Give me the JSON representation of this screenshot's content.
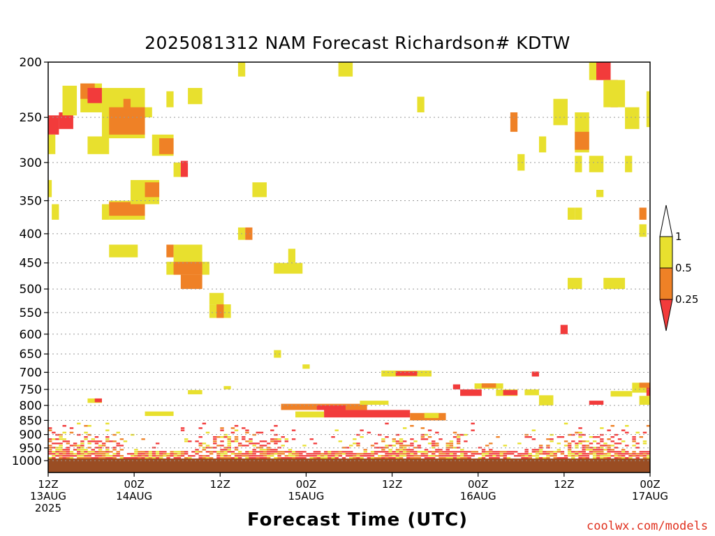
{
  "title": "2025081312 NAM Forecast Richardson# KDTW",
  "x_axis_title": "Forecast Time (UTC)",
  "credit": "coolwx.com/models",
  "chart_data": {
    "type": "heatmap",
    "title": "2025081312 NAM Forecast Richardson# KDTW",
    "xlabel": "Forecast Time (UTC)",
    "ylabel": "",
    "y_scale": "log",
    "y_inverted": true,
    "ylim": [
      200,
      1000
    ],
    "xlim_hours": [
      0,
      84
    ],
    "grid": "dotted horizontal lines at pressure ticks",
    "pressure_levels": [
      200,
      250,
      300,
      350,
      400,
      450,
      500,
      550,
      600,
      650,
      700,
      750,
      800,
      850,
      900,
      950,
      1000
    ],
    "x_ticks": [
      {
        "hour": 0,
        "lines": [
          "12Z",
          "13AUG",
          "2025"
        ]
      },
      {
        "hour": 12,
        "lines": [
          "00Z",
          "14AUG"
        ]
      },
      {
        "hour": 24,
        "lines": [
          "12Z"
        ]
      },
      {
        "hour": 36,
        "lines": [
          "00Z",
          "15AUG"
        ]
      },
      {
        "hour": 48,
        "lines": [
          "12Z"
        ]
      },
      {
        "hour": 60,
        "lines": [
          "00Z",
          "16AUG"
        ]
      },
      {
        "hour": 72,
        "lines": [
          "12Z"
        ]
      },
      {
        "hour": 84,
        "lines": [
          "00Z",
          "17AUG"
        ]
      }
    ],
    "colorbar": {
      "levels": [
        "0.25",
        "0.5",
        "1"
      ],
      "bins": [
        {
          "range": "<0.25",
          "color": "#f23b3b"
        },
        {
          "range": "0.25-0.5",
          "color": "#ef8126"
        },
        {
          "range": "0.5-1",
          "color": "#e8e02e"
        },
        {
          "range": ">1",
          "color": "#ffffff"
        }
      ]
    },
    "ground_color": "#9a4d23",
    "cells": [
      {
        "t0": 0,
        "t1": 1.5,
        "p0": 248,
        "p1": 268,
        "cat": "red"
      },
      {
        "t0": 1.5,
        "t1": 3.5,
        "p0": 245,
        "p1": 262,
        "cat": "red"
      },
      {
        "t0": 0,
        "t1": 1,
        "p0": 268,
        "p1": 290,
        "cat": "yellow"
      },
      {
        "t0": 2,
        "t1": 4,
        "p0": 220,
        "p1": 248,
        "cat": "yellow"
      },
      {
        "t0": 4.5,
        "t1": 7.5,
        "p0": 218,
        "p1": 245,
        "cat": "yellow"
      },
      {
        "t0": 4.5,
        "t1": 6.5,
        "p0": 218,
        "p1": 232,
        "cat": "orange"
      },
      {
        "t0": 5.5,
        "t1": 7.5,
        "p0": 222,
        "p1": 236,
        "cat": "red"
      },
      {
        "t0": 5.5,
        "t1": 8.5,
        "p0": 270,
        "p1": 290,
        "cat": "yellow"
      },
      {
        "t0": 7.5,
        "t1": 13.5,
        "p0": 222,
        "p1": 272,
        "cat": "yellow"
      },
      {
        "t0": 8.5,
        "t1": 13.5,
        "p0": 240,
        "p1": 268,
        "cat": "orange"
      },
      {
        "t0": 10.5,
        "t1": 11.5,
        "p0": 232,
        "p1": 242,
        "cat": "orange"
      },
      {
        "t0": 13.5,
        "t1": 14.5,
        "p0": 240,
        "p1": 250,
        "cat": "yellow"
      },
      {
        "t0": 14.5,
        "t1": 17.5,
        "p0": 268,
        "p1": 292,
        "cat": "yellow"
      },
      {
        "t0": 15.5,
        "t1": 17.5,
        "p0": 272,
        "p1": 290,
        "cat": "orange"
      },
      {
        "t0": 17.5,
        "t1": 18.5,
        "p0": 300,
        "p1": 318,
        "cat": "yellow"
      },
      {
        "t0": 18.5,
        "t1": 19.5,
        "p0": 298,
        "p1": 318,
        "cat": "red"
      },
      {
        "t0": 16.5,
        "t1": 17.5,
        "p0": 225,
        "p1": 240,
        "cat": "yellow"
      },
      {
        "t0": 19.5,
        "t1": 21.5,
        "p0": 222,
        "p1": 237,
        "cat": "yellow"
      },
      {
        "t0": 0,
        "t1": 0.5,
        "p0": 322,
        "p1": 345,
        "cat": "yellow"
      },
      {
        "t0": 0.5,
        "t1": 1.5,
        "p0": 355,
        "p1": 378,
        "cat": "yellow"
      },
      {
        "t0": 7.5,
        "t1": 8.5,
        "p0": 355,
        "p1": 378,
        "cat": "yellow"
      },
      {
        "t0": 8.5,
        "t1": 13.5,
        "p0": 350,
        "p1": 378,
        "cat": "yellow"
      },
      {
        "t0": 8.5,
        "t1": 13.5,
        "p0": 352,
        "p1": 372,
        "cat": "orange"
      },
      {
        "t0": 11.5,
        "t1": 15.5,
        "p0": 322,
        "p1": 355,
        "cat": "yellow"
      },
      {
        "t0": 13.5,
        "t1": 15.5,
        "p0": 325,
        "p1": 345,
        "cat": "orange"
      },
      {
        "t0": 8.5,
        "t1": 12.5,
        "p0": 418,
        "p1": 440,
        "cat": "yellow"
      },
      {
        "t0": 16.5,
        "t1": 17.5,
        "p0": 418,
        "p1": 440,
        "cat": "orange"
      },
      {
        "t0": 17.5,
        "t1": 21.5,
        "p0": 418,
        "p1": 448,
        "cat": "yellow"
      },
      {
        "t0": 16.5,
        "t1": 22.5,
        "p0": 448,
        "p1": 472,
        "cat": "yellow"
      },
      {
        "t0": 17.5,
        "t1": 21.5,
        "p0": 448,
        "p1": 472,
        "cat": "orange"
      },
      {
        "t0": 18.5,
        "t1": 21.5,
        "p0": 472,
        "p1": 500,
        "cat": "orange"
      },
      {
        "t0": 22.5,
        "t1": 24.5,
        "p0": 508,
        "p1": 532,
        "cat": "yellow"
      },
      {
        "t0": 22.5,
        "t1": 25.5,
        "p0": 532,
        "p1": 562,
        "cat": "yellow"
      },
      {
        "t0": 23.5,
        "t1": 24.5,
        "p0": 532,
        "p1": 562,
        "cat": "orange"
      },
      {
        "t0": 26.5,
        "t1": 27.5,
        "p0": 390,
        "p1": 410,
        "cat": "yellow"
      },
      {
        "t0": 27.5,
        "t1": 28.5,
        "p0": 390,
        "p1": 410,
        "cat": "orange"
      },
      {
        "t0": 28.5,
        "t1": 30.5,
        "p0": 325,
        "p1": 345,
        "cat": "yellow"
      },
      {
        "t0": 26.5,
        "t1": 27.5,
        "p0": 200,
        "p1": 212,
        "cat": "yellow"
      },
      {
        "t0": 31.5,
        "t1": 35.5,
        "p0": 450,
        "p1": 470,
        "cat": "yellow"
      },
      {
        "t0": 33.5,
        "t1": 34.5,
        "p0": 425,
        "p1": 450,
        "cat": "yellow"
      },
      {
        "t0": 40.5,
        "t1": 42.5,
        "p0": 200,
        "p1": 212,
        "cat": "yellow"
      },
      {
        "t0": 51.5,
        "t1": 52.5,
        "p0": 230,
        "p1": 245,
        "cat": "yellow"
      },
      {
        "t0": 64.5,
        "t1": 65.5,
        "p0": 245,
        "p1": 265,
        "cat": "orange"
      },
      {
        "t0": 65.5,
        "t1": 66.5,
        "p0": 290,
        "p1": 310,
        "cat": "yellow"
      },
      {
        "t0": 68.5,
        "t1": 69.5,
        "p0": 270,
        "p1": 288,
        "cat": "yellow"
      },
      {
        "t0": 70.5,
        "t1": 72.5,
        "p0": 232,
        "p1": 258,
        "cat": "yellow"
      },
      {
        "t0": 73.5,
        "t1": 75.5,
        "p0": 245,
        "p1": 288,
        "cat": "yellow"
      },
      {
        "t0": 73.5,
        "t1": 75.5,
        "p0": 265,
        "p1": 285,
        "cat": "orange"
      },
      {
        "t0": 75.5,
        "t1": 77.5,
        "p0": 200,
        "p1": 215,
        "cat": "yellow"
      },
      {
        "t0": 76.5,
        "t1": 78.5,
        "p0": 200,
        "p1": 215,
        "cat": "red"
      },
      {
        "t0": 78.5,
        "t1": 79.5,
        "p0": 215,
        "p1": 240,
        "cat": "red"
      },
      {
        "t0": 77.5,
        "t1": 80.5,
        "p0": 215,
        "p1": 240,
        "cat": "yellow"
      },
      {
        "t0": 80.5,
        "t1": 82.5,
        "p0": 240,
        "p1": 262,
        "cat": "yellow"
      },
      {
        "t0": 83.5,
        "t1": 84,
        "p0": 225,
        "p1": 260,
        "cat": "yellow"
      },
      {
        "t0": 75.5,
        "t1": 77.5,
        "p0": 292,
        "p1": 312,
        "cat": "yellow"
      },
      {
        "t0": 73.5,
        "t1": 74.5,
        "p0": 292,
        "p1": 312,
        "cat": "yellow"
      },
      {
        "t0": 80.5,
        "t1": 81.5,
        "p0": 292,
        "p1": 312,
        "cat": "yellow"
      },
      {
        "t0": 82.5,
        "t1": 83.5,
        "p0": 360,
        "p1": 378,
        "cat": "orange"
      },
      {
        "t0": 82.5,
        "t1": 83.5,
        "p0": 385,
        "p1": 405,
        "cat": "yellow"
      },
      {
        "t0": 72.5,
        "t1": 73.5,
        "p0": 360,
        "p1": 378,
        "cat": "yellow"
      },
      {
        "t0": 73.5,
        "t1": 74.5,
        "p0": 360,
        "p1": 378,
        "cat": "yellow"
      },
      {
        "t0": 76.5,
        "t1": 77.5,
        "p0": 335,
        "p1": 345,
        "cat": "yellow"
      },
      {
        "t0": 72.5,
        "t1": 74.5,
        "p0": 478,
        "p1": 500,
        "cat": "yellow"
      },
      {
        "t0": 77.5,
        "t1": 80.5,
        "p0": 478,
        "p1": 500,
        "cat": "yellow"
      },
      {
        "t0": 71.5,
        "t1": 72.5,
        "p0": 578,
        "p1": 600,
        "cat": "red"
      },
      {
        "t0": 31.5,
        "t1": 32.5,
        "p0": 640,
        "p1": 660,
        "cat": "yellow"
      },
      {
        "t0": 35.5,
        "t1": 36.5,
        "p0": 678,
        "p1": 690,
        "cat": "yellow"
      },
      {
        "t0": 46.5,
        "t1": 53.5,
        "p0": 695,
        "p1": 712,
        "cat": "yellow"
      },
      {
        "t0": 48.5,
        "t1": 51.5,
        "p0": 697,
        "p1": 710,
        "cat": "red"
      },
      {
        "t0": 5.5,
        "t1": 7.5,
        "p0": 778,
        "p1": 792,
        "cat": "yellow"
      },
      {
        "t0": 6.5,
        "t1": 7.5,
        "p0": 778,
        "p1": 790,
        "cat": "red"
      },
      {
        "t0": 19.5,
        "t1": 21.5,
        "p0": 752,
        "p1": 765,
        "cat": "yellow"
      },
      {
        "t0": 24.5,
        "t1": 25.5,
        "p0": 740,
        "p1": 750,
        "cat": "yellow"
      },
      {
        "t0": 56.5,
        "t1": 57.5,
        "p0": 735,
        "p1": 750,
        "cat": "red"
      },
      {
        "t0": 57.5,
        "t1": 60.5,
        "p0": 750,
        "p1": 770,
        "cat": "red"
      },
      {
        "t0": 59.5,
        "t1": 63.5,
        "p0": 732,
        "p1": 748,
        "cat": "yellow"
      },
      {
        "t0": 60.5,
        "t1": 62.5,
        "p0": 732,
        "p1": 745,
        "cat": "orange"
      },
      {
        "t0": 62.5,
        "t1": 65.5,
        "p0": 750,
        "p1": 770,
        "cat": "yellow"
      },
      {
        "t0": 63.5,
        "t1": 65.5,
        "p0": 752,
        "p1": 768,
        "cat": "red"
      },
      {
        "t0": 67.5,
        "t1": 68.5,
        "p0": 698,
        "p1": 712,
        "cat": "red"
      },
      {
        "t0": 66.5,
        "t1": 68.5,
        "p0": 750,
        "p1": 768,
        "cat": "yellow"
      },
      {
        "t0": 68.5,
        "t1": 70.5,
        "p0": 768,
        "p1": 800,
        "cat": "yellow"
      },
      {
        "t0": 75.5,
        "t1": 77.5,
        "p0": 785,
        "p1": 798,
        "cat": "red"
      },
      {
        "t0": 78.5,
        "t1": 81.5,
        "p0": 755,
        "p1": 772,
        "cat": "yellow"
      },
      {
        "t0": 81.5,
        "t1": 84,
        "p0": 730,
        "p1": 760,
        "cat": "yellow"
      },
      {
        "t0": 82.5,
        "t1": 84,
        "p0": 730,
        "p1": 745,
        "cat": "orange"
      },
      {
        "t0": 83.5,
        "t1": 84,
        "p0": 745,
        "p1": 770,
        "cat": "red"
      },
      {
        "t0": 82.5,
        "t1": 84,
        "p0": 770,
        "p1": 798,
        "cat": "yellow"
      },
      {
        "t0": 13.5,
        "t1": 17.5,
        "p0": 820,
        "p1": 835,
        "cat": "yellow"
      },
      {
        "t0": 32.5,
        "t1": 44.5,
        "p0": 795,
        "p1": 815,
        "cat": "orange"
      },
      {
        "t0": 37.5,
        "t1": 41.5,
        "p0": 800,
        "p1": 815,
        "cat": "red"
      },
      {
        "t0": 43.5,
        "t1": 47.5,
        "p0": 785,
        "p1": 798,
        "cat": "yellow"
      },
      {
        "t0": 38.5,
        "t1": 50.5,
        "p0": 815,
        "p1": 840,
        "cat": "red"
      },
      {
        "t0": 50.5,
        "t1": 55.5,
        "p0": 825,
        "p1": 850,
        "cat": "orange"
      },
      {
        "t0": 52.5,
        "t1": 54.5,
        "p0": 825,
        "p1": 842,
        "cat": "yellow"
      },
      {
        "t0": 34.5,
        "t1": 38.5,
        "p0": 820,
        "p1": 840,
        "cat": "yellow"
      }
    ],
    "boundary_layer": {
      "p_top": 960,
      "p_bottom": 993,
      "description": "mixed red/orange/yellow bands near the surface throughout the period"
    }
  }
}
